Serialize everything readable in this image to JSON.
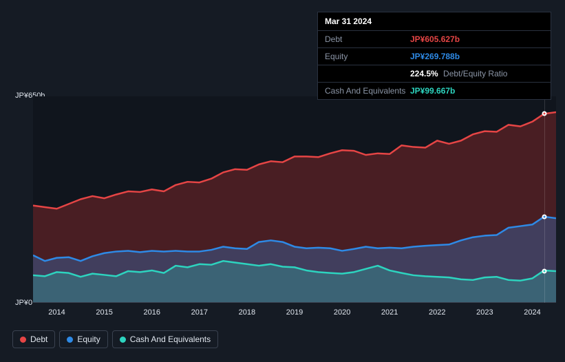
{
  "chart": {
    "type": "area",
    "background_color": "#151b24",
    "plot_background": "#10151d",
    "grid_color": "#3a4250",
    "ylim": [
      0,
      650
    ],
    "ylabel_top": "JP¥650b",
    "ylabel_bottom": "JP¥0",
    "x_years": [
      "2014",
      "2015",
      "2016",
      "2017",
      "2018",
      "2019",
      "2020",
      "2021",
      "2022",
      "2023",
      "2024"
    ],
    "x_start": 2013.5,
    "x_end": 2024.5,
    "series": {
      "debt": {
        "color": "#e64545",
        "fill": "rgba(180,50,50,0.35)",
        "label": "Debt",
        "values": [
          305,
          300,
          295,
          310,
          325,
          335,
          328,
          340,
          350,
          348,
          356,
          350,
          370,
          380,
          378,
          390,
          410,
          420,
          418,
          435,
          445,
          442,
          460,
          460,
          458,
          470,
          480,
          478,
          465,
          470,
          468,
          495,
          490,
          488,
          510,
          500,
          510,
          530,
          540,
          538,
          560,
          555,
          570,
          595,
          600
        ]
      },
      "equity": {
        "color": "#2e8ae6",
        "fill": "rgba(46,138,230,0.30)",
        "label": "Equity",
        "values": [
          148,
          130,
          140,
          142,
          130,
          145,
          155,
          160,
          162,
          158,
          162,
          160,
          162,
          160,
          160,
          165,
          175,
          170,
          168,
          190,
          195,
          190,
          175,
          170,
          172,
          170,
          162,
          168,
          175,
          170,
          172,
          170,
          175,
          178,
          180,
          182,
          195,
          205,
          210,
          212,
          235,
          240,
          245,
          270,
          265
        ]
      },
      "cash": {
        "color": "#2dd4bf",
        "fill": "rgba(45,212,191,0.25)",
        "label": "Cash And Equivalents",
        "values": [
          85,
          82,
          95,
          92,
          80,
          90,
          86,
          82,
          98,
          95,
          100,
          92,
          115,
          110,
          120,
          118,
          130,
          125,
          120,
          115,
          120,
          112,
          110,
          100,
          95,
          92,
          90,
          95,
          105,
          115,
          100,
          92,
          85,
          82,
          80,
          78,
          72,
          70,
          78,
          80,
          70,
          68,
          75,
          100,
          98
        ]
      }
    },
    "line_width": 2.5,
    "marker_x": 2024.25
  },
  "tooltip": {
    "date": "Mar 31 2024",
    "rows": [
      {
        "label": "Debt",
        "value": "JP¥605.627b",
        "cls": "debt"
      },
      {
        "label": "Equity",
        "value": "JP¥269.788b",
        "cls": "equity"
      },
      {
        "label": "",
        "value": "224.5%",
        "suffix": "Debt/Equity Ratio",
        "cls": "ratio-pct"
      },
      {
        "label": "Cash And Equivalents",
        "value": "JP¥99.667b",
        "cls": "cash"
      }
    ]
  },
  "legend": [
    {
      "label": "Debt",
      "color": "#e64545"
    },
    {
      "label": "Equity",
      "color": "#2e8ae6"
    },
    {
      "label": "Cash And Equivalents",
      "color": "#2dd4bf"
    }
  ]
}
